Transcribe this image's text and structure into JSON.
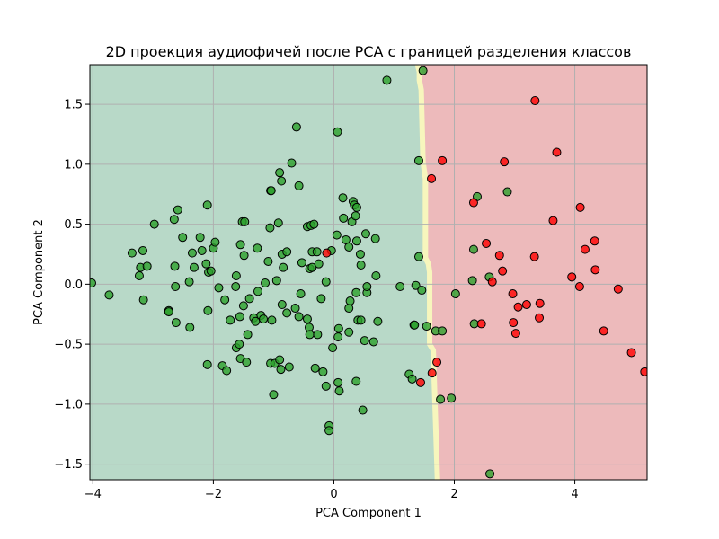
{
  "chart_data": {
    "type": "scatter",
    "title": "2D проекция аудиофичей после PCA с границей разделения классов",
    "xlabel": "PCA Component 1",
    "ylabel": "PCA Component 2",
    "xlim": [
      -4.05,
      5.2
    ],
    "ylim": [
      -1.63,
      1.83
    ],
    "xticks": [
      -4,
      -2,
      0,
      2,
      4
    ],
    "xtick_labels": [
      "−4",
      "−2",
      "0",
      "2",
      "4"
    ],
    "yticks": [
      -1.5,
      -1.0,
      -0.5,
      0.0,
      0.5,
      1.0,
      1.5
    ],
    "ytick_labels": [
      "−1.5",
      "−1.0",
      "−0.5",
      "0.0",
      "0.5",
      "1.0",
      "1.5"
    ],
    "grid": true,
    "colors": {
      "region_class_0": "#b8d9c8",
      "region_class_1": "#edbabb",
      "boundary": "#f7f6bd",
      "point_class_0": "#2ca02c",
      "point_class_1": "#ff0000",
      "grid": "#b0b0b0"
    },
    "decision_boundary": [
      [
        1.39,
        1.83
      ],
      [
        1.42,
        1.77
      ],
      [
        1.42,
        1.7
      ],
      [
        1.45,
        1.62
      ],
      [
        1.48,
        1.02
      ],
      [
        1.52,
        0.88
      ],
      [
        1.52,
        0.22
      ],
      [
        1.57,
        0.17
      ],
      [
        1.59,
        0.1
      ],
      [
        1.59,
        -0.5
      ],
      [
        1.65,
        -0.55
      ],
      [
        1.72,
        -1.63
      ]
    ],
    "series": [
      {
        "points": [
          [
            -4.02,
            0.01
          ],
          [
            -3.73,
            -0.09
          ],
          [
            -3.35,
            0.26
          ],
          [
            -3.23,
            0.07
          ],
          [
            -3.21,
            0.14
          ],
          [
            -3.17,
            0.28
          ],
          [
            -3.16,
            -0.13
          ],
          [
            -3.1,
            0.15
          ],
          [
            -2.98,
            0.5
          ],
          [
            -2.74,
            -0.22
          ],
          [
            -2.74,
            -0.23
          ],
          [
            -2.65,
            0.54
          ],
          [
            -2.64,
            0.15
          ],
          [
            -2.63,
            -0.02
          ],
          [
            -2.62,
            -0.32
          ],
          [
            -2.59,
            0.62
          ],
          [
            -2.51,
            0.39
          ],
          [
            -2.4,
            0.02
          ],
          [
            -2.39,
            -0.36
          ],
          [
            -2.35,
            0.26
          ],
          [
            -2.32,
            0.14
          ],
          [
            -2.22,
            0.39
          ],
          [
            -2.19,
            0.28
          ],
          [
            -2.12,
            0.17
          ],
          [
            -2.1,
            0.66
          ],
          [
            -2.09,
            -0.22
          ],
          [
            -2.08,
            0.1
          ],
          [
            -2.1,
            -0.67
          ],
          [
            -2.04,
            0.11
          ],
          [
            -2.0,
            0.3
          ],
          [
            -1.97,
            0.35
          ],
          [
            -1.91,
            -0.03
          ],
          [
            -1.85,
            -0.68
          ],
          [
            -1.81,
            -0.13
          ],
          [
            -1.78,
            -0.72
          ],
          [
            -1.72,
            -0.3
          ],
          [
            -1.62,
            0.07
          ],
          [
            -1.63,
            -0.02
          ],
          [
            -1.62,
            -0.53
          ],
          [
            -1.56,
            -0.27
          ],
          [
            -1.57,
            -0.5
          ],
          [
            -1.55,
            0.33
          ],
          [
            -1.52,
            0.52
          ],
          [
            -1.48,
            0.52
          ],
          [
            -1.5,
            -0.18
          ],
          [
            -1.55,
            -0.62
          ],
          [
            -1.49,
            0.24
          ],
          [
            -1.43,
            -0.42
          ],
          [
            -1.45,
            -0.65
          ],
          [
            -1.4,
            -0.12
          ],
          [
            -1.33,
            -0.28
          ],
          [
            -1.27,
            0.3
          ],
          [
            -1.3,
            -0.31
          ],
          [
            -1.26,
            -0.06
          ],
          [
            -1.21,
            -0.26
          ],
          [
            -1.17,
            -0.29
          ],
          [
            -1.14,
            0.01
          ],
          [
            -1.06,
            0.47
          ],
          [
            -1.09,
            0.19
          ],
          [
            -1.03,
            -0.3
          ],
          [
            -1.05,
            -0.66
          ],
          [
            -1.05,
            0.78
          ],
          [
            -1.04,
            0.78
          ],
          [
            -1.0,
            -0.92
          ],
          [
            -0.9,
            0.93
          ],
          [
            -0.92,
            0.51
          ],
          [
            -0.95,
            0.03
          ],
          [
            -0.98,
            -0.66
          ],
          [
            -0.9,
            -0.63
          ],
          [
            -0.88,
            -0.71
          ],
          [
            -0.87,
            0.86
          ],
          [
            -0.86,
            0.25
          ],
          [
            -0.86,
            -0.17
          ],
          [
            -0.84,
            0.14
          ],
          [
            -0.78,
            -0.24
          ],
          [
            -0.74,
            -0.69
          ],
          [
            -0.78,
            0.27
          ],
          [
            -0.7,
            1.01
          ],
          [
            -0.64,
            -0.2
          ],
          [
            -0.62,
            1.31
          ],
          [
            -0.58,
            -0.27
          ],
          [
            -0.58,
            0.82
          ],
          [
            -0.55,
            -0.08
          ],
          [
            -0.53,
            0.18
          ],
          [
            -0.44,
            -0.29
          ],
          [
            -0.44,
            0.48
          ],
          [
            -0.41,
            -0.36
          ],
          [
            -0.4,
            0.13
          ],
          [
            -0.4,
            -0.42
          ],
          [
            -0.38,
            0.49
          ],
          [
            -0.36,
            0.14
          ],
          [
            -0.36,
            0.27
          ],
          [
            -0.33,
            0.5
          ],
          [
            -0.31,
            -0.7
          ],
          [
            -0.28,
            0.27
          ],
          [
            -0.27,
            -0.42
          ],
          [
            -0.25,
            0.17
          ],
          [
            -0.21,
            -0.12
          ],
          [
            -0.18,
            -0.73
          ],
          [
            -0.13,
            -0.85
          ],
          [
            -0.13,
            0.02
          ],
          [
            -0.08,
            -1.18
          ],
          [
            -0.08,
            -1.22
          ],
          [
            -0.04,
            0.28
          ],
          [
            -0.02,
            -0.53
          ],
          [
            0.05,
            0.41
          ],
          [
            0.06,
            1.27
          ],
          [
            0.08,
            -0.37
          ],
          [
            0.07,
            -0.44
          ],
          [
            0.07,
            -0.82
          ],
          [
            0.09,
            -0.89
          ],
          [
            0.15,
            0.72
          ],
          [
            0.16,
            0.55
          ],
          [
            0.2,
            0.37
          ],
          [
            0.25,
            0.31
          ],
          [
            0.25,
            -0.2
          ],
          [
            0.25,
            -0.4
          ],
          [
            0.27,
            -0.14
          ],
          [
            0.3,
            0.52
          ],
          [
            0.32,
            0.69
          ],
          [
            0.34,
            0.66
          ],
          [
            0.36,
            0.57
          ],
          [
            0.38,
            0.36
          ],
          [
            0.38,
            0.64
          ],
          [
            0.37,
            -0.07
          ],
          [
            0.37,
            -0.81
          ],
          [
            0.4,
            -0.3
          ],
          [
            0.44,
            0.25
          ],
          [
            0.45,
            0.16
          ],
          [
            0.45,
            -0.3
          ],
          [
            0.48,
            -1.05
          ],
          [
            0.51,
            -0.47
          ],
          [
            0.53,
            0.42
          ],
          [
            0.55,
            -0.07
          ],
          [
            0.55,
            -0.02
          ],
          [
            0.66,
            -0.48
          ],
          [
            0.69,
            0.38
          ],
          [
            0.7,
            0.07
          ],
          [
            0.73,
            -0.31
          ],
          [
            0.88,
            1.7
          ],
          [
            1.1,
            -0.02
          ],
          [
            1.25,
            -0.75
          ],
          [
            1.3,
            -0.79
          ],
          [
            1.33,
            -0.34
          ],
          [
            1.34,
            -0.34
          ],
          [
            1.36,
            -0.01
          ],
          [
            1.41,
            1.03
          ],
          [
            1.41,
            0.23
          ],
          [
            1.46,
            -0.05
          ],
          [
            1.48,
            1.78
          ],
          [
            1.54,
            -0.35
          ],
          [
            1.69,
            -0.39
          ],
          [
            1.77,
            -0.96
          ],
          [
            1.8,
            -0.39
          ],
          [
            1.95,
            -0.95
          ],
          [
            2.02,
            -0.08
          ],
          [
            2.3,
            0.03
          ],
          [
            2.33,
            -0.33
          ],
          [
            2.38,
            0.73
          ],
          [
            2.58,
            0.06
          ],
          [
            2.88,
            0.77
          ],
          [
            2.59,
            -1.58
          ],
          [
            2.32,
            0.29
          ]
        ]
      },
      {
        "points": [
          [
            -0.12,
            0.26
          ],
          [
            1.62,
            0.88
          ],
          [
            1.44,
            -0.82
          ],
          [
            1.63,
            -0.74
          ],
          [
            1.71,
            -0.65
          ],
          [
            1.8,
            1.03
          ],
          [
            2.32,
            0.68
          ],
          [
            2.45,
            -0.33
          ],
          [
            2.53,
            0.34
          ],
          [
            2.63,
            0.02
          ],
          [
            2.75,
            0.24
          ],
          [
            2.8,
            0.11
          ],
          [
            2.83,
            1.02
          ],
          [
            2.97,
            -0.08
          ],
          [
            2.98,
            -0.32
          ],
          [
            3.02,
            -0.41
          ],
          [
            3.06,
            -0.19
          ],
          [
            3.2,
            -0.17
          ],
          [
            3.34,
            1.53
          ],
          [
            3.33,
            0.23
          ],
          [
            3.41,
            -0.28
          ],
          [
            3.42,
            -0.16
          ],
          [
            3.64,
            0.53
          ],
          [
            3.7,
            1.1
          ],
          [
            3.95,
            0.06
          ],
          [
            4.08,
            -0.02
          ],
          [
            4.09,
            0.64
          ],
          [
            4.17,
            0.29
          ],
          [
            4.33,
            0.36
          ],
          [
            4.34,
            0.12
          ],
          [
            4.48,
            -0.39
          ],
          [
            4.72,
            -0.04
          ],
          [
            4.94,
            -0.57
          ],
          [
            5.16,
            -0.73
          ]
        ]
      }
    ]
  }
}
